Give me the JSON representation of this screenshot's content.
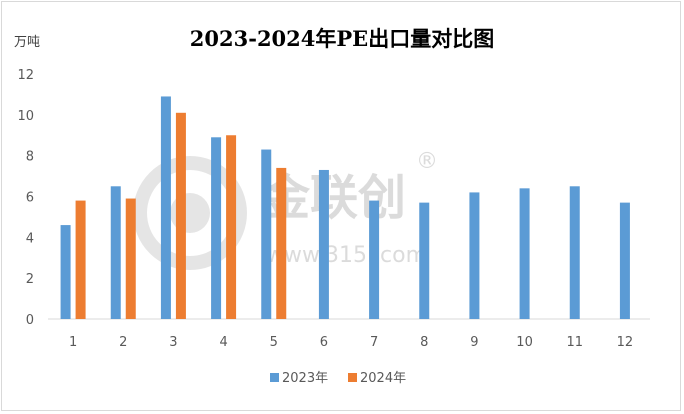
{
  "chart_data": {
    "type": "bar",
    "title": "2023-2024年PE出口量对比图",
    "ylabel": "万吨",
    "xlabel": "",
    "categories": [
      "1",
      "2",
      "3",
      "4",
      "5",
      "6",
      "7",
      "8",
      "9",
      "10",
      "11",
      "12"
    ],
    "series": [
      {
        "name": "2023年",
        "color": "#5b9bd5",
        "values": [
          4.6,
          6.5,
          10.9,
          8.9,
          8.3,
          7.3,
          5.8,
          5.7,
          6.2,
          6.4,
          6.5,
          5.7
        ]
      },
      {
        "name": "2024年",
        "color": "#ed7d31",
        "values": [
          5.8,
          5.9,
          10.1,
          9.0,
          7.4,
          null,
          null,
          null,
          null,
          null,
          null,
          null
        ]
      }
    ],
    "ylim": [
      0,
      12
    ],
    "yticks": [
      0,
      2,
      4,
      6,
      8,
      10,
      12
    ],
    "grid": false,
    "legend": "bottom-center"
  },
  "watermark": {
    "brand": "金联创",
    "registered": "®",
    "url": "www.315i.com"
  }
}
